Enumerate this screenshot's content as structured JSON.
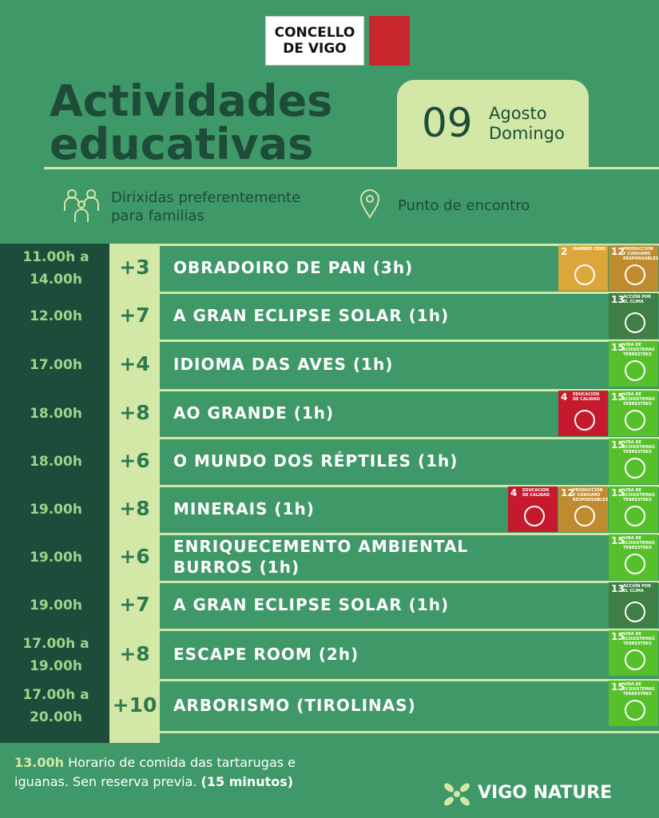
{
  "header": {
    "logo": [
      "CONCELLO",
      "DE VIGO"
    ],
    "title": [
      "Actividades",
      "educativas"
    ],
    "day": "09",
    "month": "Agosto",
    "weekday": "Domingo"
  },
  "legend": {
    "families": "Dirixidas preferentemente para familias",
    "meeting": "Punto de encontro"
  },
  "rows": [
    {
      "time": [
        "11.00h a",
        "14.00h"
      ],
      "age": "+3",
      "activity": "OBRADOIRO DE PAN  (3h)",
      "badges": [
        {
          "number": "2",
          "label": "HAMBRE CERO",
          "color": "#dda63a"
        },
        {
          "number": "12",
          "label": "PRODUCCIÓN Y CONSUMO RESPONSABLES",
          "color": "#bf8b2e"
        }
      ]
    },
    {
      "time": [
        "12.00h"
      ],
      "age": "+7",
      "activity": "A GRAN ECLIPSE SOLAR (1h)",
      "badges": [
        {
          "number": "13",
          "label": "ACCIÓN POR EL CLIMA",
          "color": "#3f7e44"
        }
      ]
    },
    {
      "time": [
        "17.00h"
      ],
      "age": "+4",
      "activity": "IDIOMA DAS AVES (1h)",
      "badges": [
        {
          "number": "15",
          "label": "VIDA DE ECOSISTEMAS TERRESTRES",
          "color": "#56c02b"
        }
      ]
    },
    {
      "time": [
        "18.00h"
      ],
      "age": "+8",
      "activity": "AO GRANDE (1h)",
      "badges": [
        {
          "number": "4",
          "label": "EDUCACIÓN DE CALIDAD",
          "color": "#c5192d"
        },
        {
          "number": "15",
          "label": "VIDA DE ECOSISTEMAS TERRESTRES",
          "color": "#56c02b"
        }
      ]
    },
    {
      "time": [
        "18.00h"
      ],
      "age": "+6",
      "activity": "O MUNDO DOS RÉPTILES (1h)",
      "badges": [
        {
          "number": "15",
          "label": "VIDA DE ECOSISTEMAS TERRESTRES",
          "color": "#56c02b"
        }
      ]
    },
    {
      "time": [
        "19.00h"
      ],
      "age": "+8",
      "activity": "MINERAIS (1h)",
      "badges": [
        {
          "number": "4",
          "label": "EDUCACIÓN DE CALIDAD",
          "color": "#c5192d"
        },
        {
          "number": "12",
          "label": "PRODUCCIÓN Y CONSUMO RESPONSABLES",
          "color": "#bf8b2e"
        },
        {
          "number": "15",
          "label": "VIDA DE ECOSISTEMAS TERRESTRES",
          "color": "#56c02b"
        }
      ]
    },
    {
      "time": [
        "19.00h"
      ],
      "age": "+6",
      "activity": "ENRIQUECEMENTO AMBIENTAL BURROS (1h)",
      "badges": [
        {
          "number": "15",
          "label": "VIDA DE ECOSISTEMAS TERRESTRES",
          "color": "#56c02b"
        }
      ]
    },
    {
      "time": [
        "19.00h"
      ],
      "age": "+7",
      "activity": "A GRAN ECLIPSE SOLAR (1h)",
      "badges": [
        {
          "number": "13",
          "label": "ACCIÓN POR EL CLIMA",
          "color": "#3f7e44"
        }
      ]
    },
    {
      "time": [
        "17.00h a",
        "19.00h"
      ],
      "age": "+8",
      "activity": "ESCAPE ROOM (2h)",
      "badges": [
        {
          "number": "15",
          "label": "VIDA DE ECOSISTEMAS TERRESTRES",
          "color": "#56c02b"
        }
      ]
    },
    {
      "time": [
        "17.00h a",
        "20.00h"
      ],
      "age": "+10",
      "activity": "ARBORISMO (TIROLINAS)",
      "badges": [
        {
          "number": "15",
          "label": "VIDA DE ECOSISTEMAS TERRESTRES",
          "color": "#56c02b"
        }
      ]
    }
  ],
  "footer": {
    "time": "13.00h",
    "text": "Horario de comida das tartarugas e iguanas. Sen reserva previa.",
    "duration": "(15 minutos)",
    "brand": "VIGO NATURE"
  }
}
